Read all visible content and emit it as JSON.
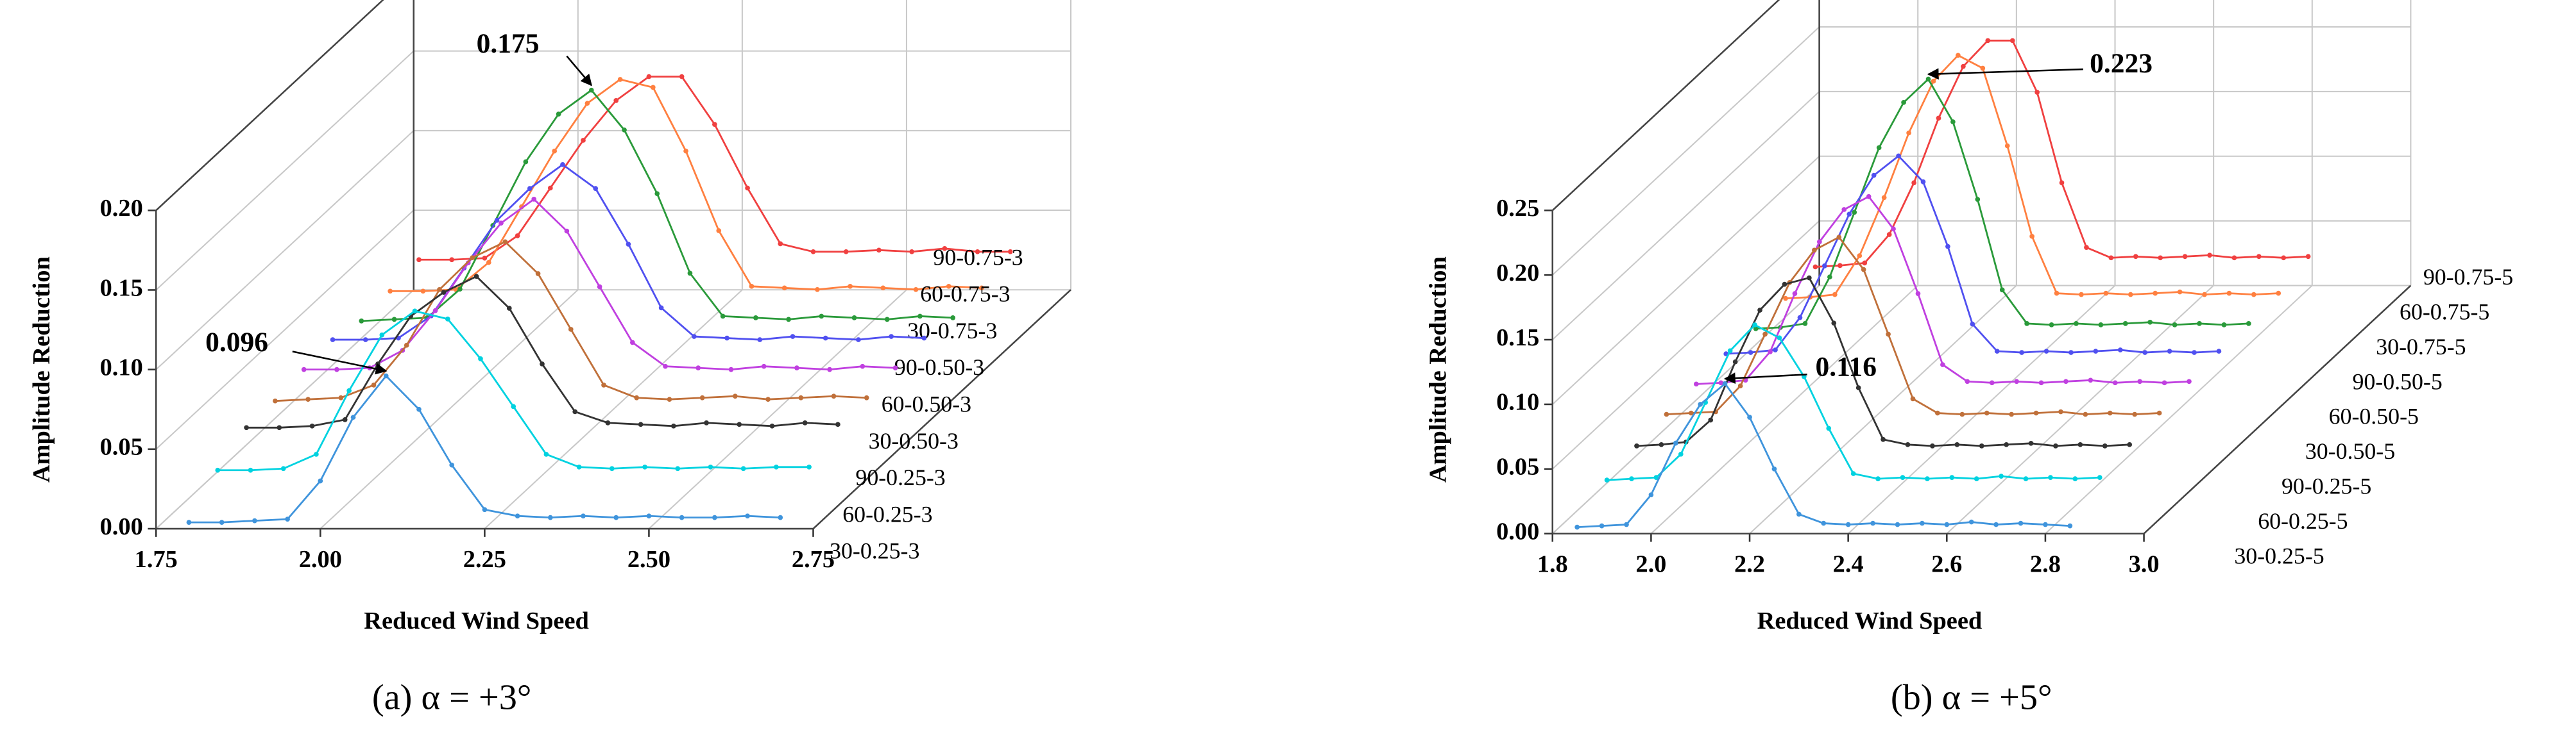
{
  "chart_data": [
    {
      "type": "line",
      "xlabel": "Reduced Wind Speed",
      "ylabel": "Amplitude Reduction",
      "caption": "(a) α = +3°",
      "xlim": [
        1.75,
        2.75
      ],
      "xticks": [
        1.75,
        {
          "value": 2,
          "label": "2.00"
        },
        2.25,
        {
          "value": 2.5,
          "label": "2.50"
        },
        2.75
      ],
      "ylim": [
        0,
        0.2
      ],
      "yticks": [
        {
          "value": 0,
          "label": "0.00"
        },
        0.05,
        {
          "value": 0.1,
          "label": "0.10"
        },
        0.15,
        {
          "value": 0.2,
          "label": "0.20"
        }
      ],
      "grid": true,
      "annotations": [
        "0.175",
        "0.096"
      ],
      "x": [
        1.8,
        1.85,
        1.9,
        1.95,
        2,
        2.05,
        2.1,
        2.15,
        2.2,
        2.25,
        2.3,
        2.35,
        2.4,
        2.45,
        2.5,
        2.55,
        2.6,
        2.65,
        2.7
      ],
      "series": [
        {
          "name": "30-0.25-3",
          "color": "#3f94dc",
          "values": [
            0.004,
            0.004,
            0.005,
            0.006,
            0.03,
            0.07,
            0.096,
            0.075,
            0.04,
            0.012,
            0.008,
            0.007,
            0.008,
            0.007,
            0.008,
            0.007,
            0.007,
            0.008,
            0.007
          ]
        },
        {
          "name": "60-0.25-3",
          "color": "#00d2e0",
          "values": [
            0.02,
            0.02,
            0.021,
            0.03,
            0.07,
            0.105,
            0.12,
            0.115,
            0.09,
            0.06,
            0.03,
            0.022,
            0.021,
            0.022,
            0.021,
            0.022,
            0.021,
            0.022,
            0.022
          ]
        },
        {
          "name": "90-0.25-3",
          "color": "#333333",
          "values": [
            0.03,
            0.03,
            0.031,
            0.035,
            0.07,
            0.1,
            0.115,
            0.125,
            0.105,
            0.07,
            0.04,
            0.033,
            0.032,
            0.031,
            0.033,
            0.032,
            0.031,
            0.033,
            0.032
          ]
        },
        {
          "name": "30-0.50-3",
          "color": "#c0703a",
          "values": [
            0.03,
            0.031,
            0.032,
            0.04,
            0.065,
            0.1,
            0.12,
            0.13,
            0.11,
            0.075,
            0.04,
            0.032,
            0.031,
            0.032,
            0.033,
            0.031,
            0.032,
            0.033,
            0.032
          ]
        },
        {
          "name": "60-0.50-3",
          "color": "#c040e0",
          "values": [
            0.033,
            0.033,
            0.034,
            0.045,
            0.07,
            0.1,
            0.125,
            0.14,
            0.12,
            0.085,
            0.05,
            0.035,
            0.034,
            0.033,
            0.035,
            0.034,
            0.033,
            0.035,
            0.034
          ]
        },
        {
          "name": "90-0.50-3",
          "color": "#5050f0",
          "values": [
            0.035,
            0.035,
            0.036,
            0.05,
            0.08,
            0.11,
            0.13,
            0.145,
            0.13,
            0.095,
            0.055,
            0.037,
            0.036,
            0.035,
            0.037,
            0.036,
            0.035,
            0.037,
            0.036
          ]
        },
        {
          "name": "30-0.75-3",
          "color": "#2a9a3a",
          "values": [
            0.03,
            0.031,
            0.032,
            0.05,
            0.09,
            0.13,
            0.16,
            0.175,
            0.15,
            0.11,
            0.06,
            0.033,
            0.032,
            0.031,
            0.033,
            0.032,
            0.031,
            0.033,
            0.032
          ]
        },
        {
          "name": "60-0.75-3",
          "color": "#ff8040",
          "values": [
            0.032,
            0.032,
            0.033,
            0.05,
            0.085,
            0.12,
            0.15,
            0.165,
            0.16,
            0.12,
            0.07,
            0.035,
            0.034,
            0.033,
            0.035,
            0.034,
            0.033,
            0.035,
            0.034
          ]
        },
        {
          "name": "90-0.75-3",
          "color": "#f04040",
          "values": [
            0.035,
            0.035,
            0.036,
            0.05,
            0.08,
            0.11,
            0.135,
            0.15,
            0.15,
            0.12,
            0.08,
            0.045,
            0.04,
            0.04,
            0.041,
            0.04,
            0.042,
            0.04,
            0.04
          ]
        }
      ]
    },
    {
      "type": "line",
      "xlabel": "Reduced Wind Speed",
      "ylabel": "Amplitude Reduction",
      "caption": "(b) α = +5°",
      "xlim": [
        1.8,
        3.0
      ],
      "xticks": [
        1.8,
        {
          "value": 2,
          "label": "2.0"
        },
        2.2,
        2.4,
        2.6,
        2.8,
        {
          "value": 3,
          "label": "3.0"
        }
      ],
      "ylim": [
        0,
        0.25
      ],
      "yticks": [
        {
          "value": 0,
          "label": "0.00"
        },
        0.05,
        {
          "value": 0.1,
          "label": "0.10"
        },
        0.15,
        {
          "value": 0.2,
          "label": "0.20"
        },
        0.25
      ],
      "grid": true,
      "annotations": [
        "0.223",
        "0.116"
      ],
      "x": [
        1.85,
        1.9,
        1.95,
        2,
        2.05,
        2.1,
        2.15,
        2.2,
        2.25,
        2.3,
        2.35,
        2.4,
        2.45,
        2.5,
        2.55,
        2.6,
        2.65,
        2.7,
        2.75,
        2.8,
        2.85
      ],
      "series": [
        {
          "name": "30-0.25-5",
          "color": "#3f94dc",
          "values": [
            0.005,
            0.006,
            0.007,
            0.03,
            0.07,
            0.1,
            0.116,
            0.09,
            0.05,
            0.015,
            0.008,
            0.007,
            0.008,
            0.007,
            0.008,
            0.007,
            0.009,
            0.007,
            0.008,
            0.007,
            0.006
          ]
        },
        {
          "name": "60-0.25-5",
          "color": "#00d2e0",
          "values": [
            0.02,
            0.021,
            0.022,
            0.04,
            0.08,
            0.12,
            0.14,
            0.13,
            0.1,
            0.06,
            0.025,
            0.021,
            0.022,
            0.021,
            0.022,
            0.021,
            0.023,
            0.021,
            0.022,
            0.021,
            0.022
          ]
        },
        {
          "name": "90-0.25-5",
          "color": "#333333",
          "values": [
            0.025,
            0.026,
            0.028,
            0.045,
            0.09,
            0.13,
            0.15,
            0.155,
            0.12,
            0.07,
            0.03,
            0.026,
            0.025,
            0.026,
            0.025,
            0.026,
            0.027,
            0.025,
            0.026,
            0.025,
            0.026
          ]
        },
        {
          "name": "30-0.50-5",
          "color": "#c0703a",
          "values": [
            0.028,
            0.029,
            0.03,
            0.05,
            0.09,
            0.13,
            0.155,
            0.165,
            0.14,
            0.09,
            0.04,
            0.029,
            0.028,
            0.029,
            0.028,
            0.029,
            0.03,
            0.028,
            0.029,
            0.028,
            0.029
          ]
        },
        {
          "name": "60-0.50-5",
          "color": "#c040e0",
          "values": [
            0.03,
            0.031,
            0.033,
            0.055,
            0.1,
            0.14,
            0.165,
            0.175,
            0.15,
            0.1,
            0.045,
            0.032,
            0.031,
            0.032,
            0.031,
            0.032,
            0.033,
            0.031,
            0.032,
            0.031,
            0.032
          ]
        },
        {
          "name": "90-0.50-5",
          "color": "#5050f0",
          "values": [
            0.032,
            0.033,
            0.035,
            0.06,
            0.1,
            0.14,
            0.17,
            0.185,
            0.165,
            0.115,
            0.055,
            0.034,
            0.033,
            0.034,
            0.033,
            0.034,
            0.035,
            0.033,
            0.034,
            0.033,
            0.034
          ]
        },
        {
          "name": "30-0.75-5",
          "color": "#2a9a3a",
          "values": [
            0.03,
            0.031,
            0.034,
            0.07,
            0.12,
            0.17,
            0.205,
            0.223,
            0.19,
            0.13,
            0.06,
            0.034,
            0.033,
            0.034,
            0.033,
            0.034,
            0.035,
            0.033,
            0.034,
            0.033,
            0.034
          ]
        },
        {
          "name": "60-0.75-5",
          "color": "#ff8040",
          "values": [
            0.032,
            0.033,
            0.035,
            0.065,
            0.11,
            0.16,
            0.2,
            0.22,
            0.21,
            0.15,
            0.08,
            0.036,
            0.035,
            0.036,
            0.035,
            0.036,
            0.037,
            0.035,
            0.036,
            0.035,
            0.036
          ]
        },
        {
          "name": "90-0.75-5",
          "color": "#f04040",
          "values": [
            0.035,
            0.036,
            0.038,
            0.06,
            0.1,
            0.15,
            0.19,
            0.21,
            0.21,
            0.17,
            0.1,
            0.05,
            0.042,
            0.043,
            0.042,
            0.043,
            0.044,
            0.042,
            0.043,
            0.042,
            0.043
          ]
        }
      ]
    }
  ]
}
